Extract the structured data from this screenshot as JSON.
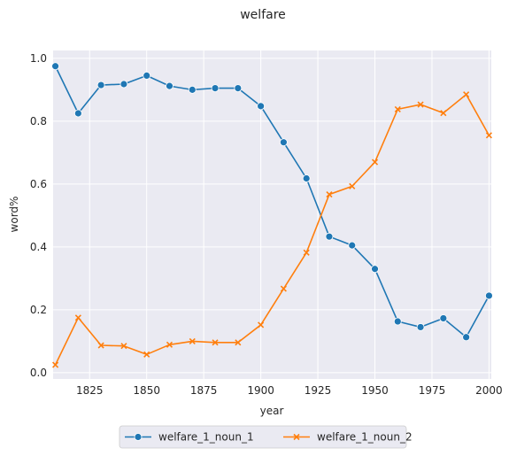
{
  "chart_data": {
    "type": "line",
    "title": "welfare",
    "xlabel": "year",
    "ylabel": "word%",
    "xlim": [
      1809,
      2001
    ],
    "ylim": [
      -0.02,
      1.025
    ],
    "xticks": [
      1825,
      1850,
      1875,
      1900,
      1925,
      1950,
      1975,
      2000
    ],
    "xtick_labels": [
      "1825",
      "1850",
      "1875",
      "1900",
      "1925",
      "1950",
      "1975",
      "2000"
    ],
    "yticks": [
      0.0,
      0.2,
      0.4,
      0.6,
      0.8,
      1.0
    ],
    "ytick_labels": [
      "0.0",
      "0.2",
      "0.4",
      "0.6",
      "0.8",
      "1.0"
    ],
    "grid": true,
    "legend_position": "bottom-center",
    "x": [
      1810,
      1820,
      1830,
      1840,
      1850,
      1860,
      1870,
      1880,
      1890,
      1900,
      1910,
      1920,
      1930,
      1940,
      1950,
      1960,
      1970,
      1980,
      1990,
      2000
    ],
    "series": [
      {
        "name": "welfare_1_noun_1",
        "color": "#1f77b4",
        "marker": "circle",
        "values": [
          0.975,
          0.825,
          0.915,
          0.918,
          0.945,
          0.912,
          0.9,
          0.905,
          0.905,
          0.848,
          0.733,
          0.618,
          0.433,
          0.405,
          0.33,
          0.163,
          0.145,
          0.173,
          0.113,
          0.245
        ]
      },
      {
        "name": "welfare_1_noun_2",
        "color": "#ff7f0e",
        "marker": "x",
        "values": [
          0.025,
          0.175,
          0.087,
          0.085,
          0.058,
          0.089,
          0.1,
          0.096,
          0.096,
          0.152,
          0.267,
          0.382,
          0.567,
          0.593,
          0.67,
          0.838,
          0.853,
          0.826,
          0.885,
          0.755
        ]
      }
    ]
  }
}
